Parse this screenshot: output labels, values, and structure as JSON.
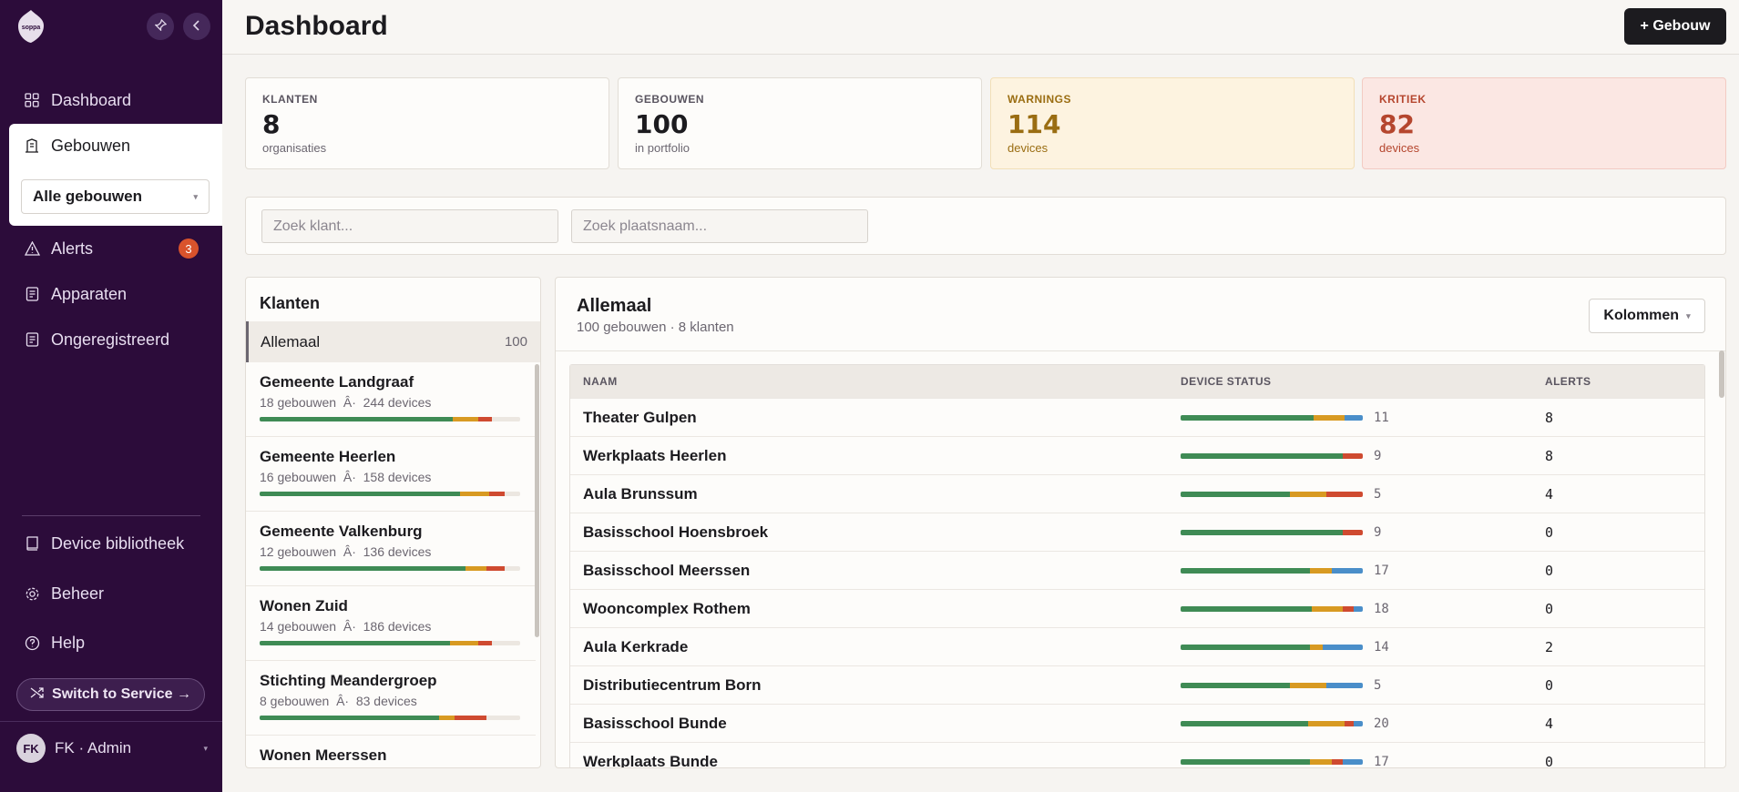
{
  "sidebar": {
    "logo_text": "soppa",
    "pin_icon": "pin-icon",
    "collapse_icon": "chevron-left-icon",
    "nav": [
      {
        "label": "Dashboard",
        "icon": "grid-icon"
      },
      {
        "label": "Gebouwen",
        "icon": "building-icon"
      },
      {
        "label": "Alerts",
        "icon": "warning-icon",
        "badge": "3"
      },
      {
        "label": "Apparaten",
        "icon": "device-icon"
      },
      {
        "label": "Ongeregistreerd",
        "icon": "device-icon"
      }
    ],
    "building_select": "Alle gebouwen",
    "bottom_nav": [
      {
        "label": "Device bibliotheek",
        "icon": "book-icon"
      },
      {
        "label": "Beheer",
        "icon": "gear-icon"
      },
      {
        "label": "Help",
        "icon": "help-icon"
      }
    ],
    "switch_label": "Switch to Service →",
    "user": {
      "initials": "FK",
      "label": "FK · Admin"
    }
  },
  "header": {
    "title": "Dashboard",
    "add_button": "+ Gebouw"
  },
  "stats": [
    {
      "label": "KLANTEN",
      "value": "8",
      "sub": "organisaties"
    },
    {
      "label": "GEBOUWEN",
      "value": "100",
      "sub": "in portfolio"
    },
    {
      "label": "WARNINGS",
      "value": "114",
      "sub": "devices"
    },
    {
      "label": "KRITIEK",
      "value": "82",
      "sub": "devices"
    }
  ],
  "search": {
    "klant_placeholder": "Zoek klant...",
    "plaats_placeholder": "Zoek plaatsnaam..."
  },
  "klanten": {
    "title": "Klanten",
    "all_label": "Allemaal",
    "all_count": "100",
    "items": [
      {
        "name": "Gemeente Landgraaf",
        "meta": "18 gebouwen  Â·  244 devices",
        "status": {
          "green": 0.74,
          "orange": 0.1,
          "red": 0.05,
          "blue": 0
        }
      },
      {
        "name": "Gemeente Heerlen",
        "meta": "16 gebouwen  Â·  158 devices",
        "status": {
          "green": 0.77,
          "orange": 0.11,
          "red": 0.06,
          "blue": 0
        }
      },
      {
        "name": "Gemeente Valkenburg",
        "meta": "12 gebouwen  Â·  136 devices",
        "status": {
          "green": 0.79,
          "orange": 0.08,
          "red": 0.07,
          "blue": 0
        }
      },
      {
        "name": "Wonen Zuid",
        "meta": "14 gebouwen  Â·  186 devices",
        "status": {
          "green": 0.73,
          "orange": 0.11,
          "red": 0.05,
          "blue": 0
        }
      },
      {
        "name": "Stichting Meandergroep",
        "meta": "8 gebouwen  Â·  83 devices",
        "status": {
          "green": 0.69,
          "orange": 0.06,
          "red": 0.12,
          "blue": 0
        }
      },
      {
        "name": "Wonen Meerssen",
        "meta": "",
        "status": {
          "green": 0,
          "orange": 0,
          "red": 0,
          "blue": 0
        }
      }
    ]
  },
  "main": {
    "title": "Allemaal",
    "subtitle": "100 gebouwen · 8 klanten",
    "columns_button": "Kolommen",
    "headers": {
      "name": "NAAM",
      "status": "DEVICE STATUS",
      "alerts": "ALERTS"
    },
    "rows": [
      {
        "name": "Theater Gulpen",
        "count": "11",
        "alerts": "8",
        "status": {
          "green": 0.73,
          "orange": 0.17,
          "red": 0,
          "blue": 0.1
        }
      },
      {
        "name": "Werkplaats Heerlen",
        "count": "9",
        "alerts": "8",
        "status": {
          "green": 0.89,
          "orange": 0,
          "red": 0.11,
          "blue": 0
        }
      },
      {
        "name": "Aula Brunssum",
        "count": "5",
        "alerts": "4",
        "status": {
          "green": 0.6,
          "orange": 0.2,
          "red": 0.2,
          "blue": 0
        }
      },
      {
        "name": "Basisschool Hoensbroek",
        "count": "9",
        "alerts": "0",
        "status": {
          "green": 0.89,
          "orange": 0,
          "red": 0.11,
          "blue": 0
        }
      },
      {
        "name": "Basisschool Meerssen",
        "count": "17",
        "alerts": "0",
        "status": {
          "green": 0.71,
          "orange": 0.12,
          "red": 0,
          "blue": 0.17
        }
      },
      {
        "name": "Wooncomplex Rothem",
        "count": "18",
        "alerts": "0",
        "status": {
          "green": 0.72,
          "orange": 0.17,
          "red": 0.06,
          "blue": 0.05
        }
      },
      {
        "name": "Aula Kerkrade",
        "count": "14",
        "alerts": "2",
        "status": {
          "green": 0.71,
          "orange": 0.07,
          "red": 0,
          "blue": 0.22
        }
      },
      {
        "name": "Distributiecentrum Born",
        "count": "5",
        "alerts": "0",
        "status": {
          "green": 0.6,
          "orange": 0.2,
          "red": 0,
          "blue": 0.2
        }
      },
      {
        "name": "Basisschool Bunde",
        "count": "20",
        "alerts": "4",
        "status": {
          "green": 0.7,
          "orange": 0.2,
          "red": 0.05,
          "blue": 0.05
        }
      },
      {
        "name": "Werkplaats Bunde",
        "count": "17",
        "alerts": "0",
        "status": {
          "green": 0.71,
          "orange": 0.12,
          "red": 0.06,
          "blue": 0.11
        }
      }
    ]
  },
  "colors": {
    "sidebar": "#2c0c3a",
    "green": "#3f8b55",
    "orange": "#d89a22",
    "red": "#cf4a30",
    "blue": "#4a8ec9",
    "badge": "#d9532c"
  }
}
